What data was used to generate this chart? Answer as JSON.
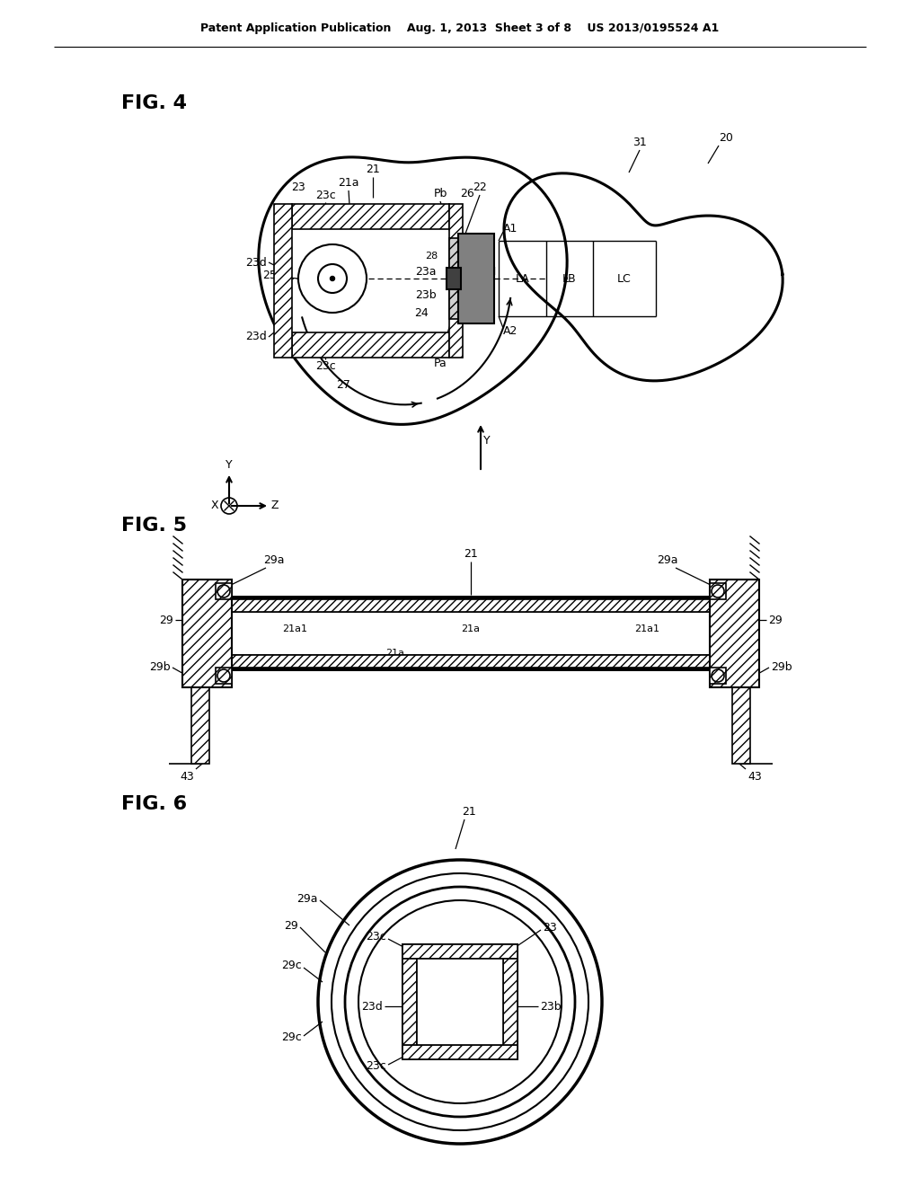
{
  "bg_color": "#ffffff",
  "line_color": "#000000",
  "header_text": "Patent Application Publication    Aug. 1, 2013  Sheet 3 of 8    US 2013/0195524 A1",
  "fig4_label": "FIG. 4",
  "fig5_label": "FIG. 5",
  "fig6_label": "FIG. 6"
}
